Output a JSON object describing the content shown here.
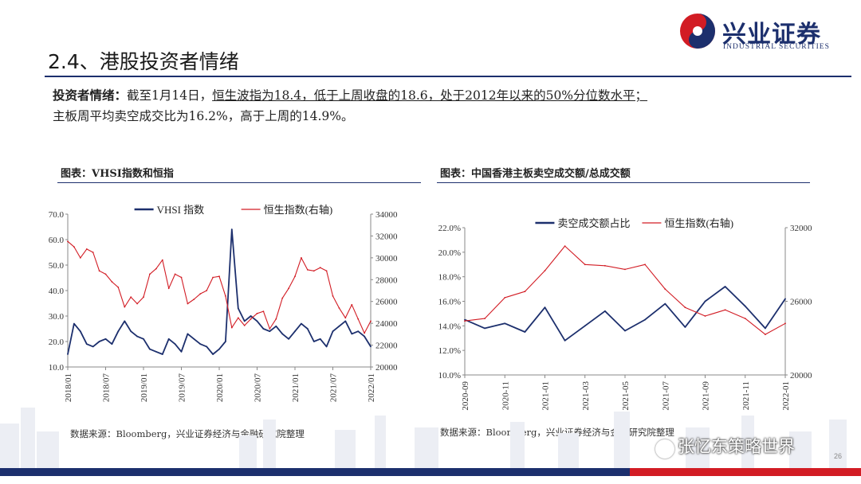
{
  "logo": {
    "name": "兴业证券",
    "subtitle": "INDUSTRIAL SECURITIES"
  },
  "section_title": "2.4、港股投资者情绪",
  "summary": {
    "label": "投资者情绪：",
    "part1": "截至1月14日，",
    "part2_underlined": "恒生波指为18.4，低于上周收盘的18.6，处于2012年以来的50%分位数水平；",
    "line2": "主板周平均卖空成交比为16.2%，高于上周的14.9%。"
  },
  "page_number": "26",
  "watermark": "张忆东策略世界",
  "colors": {
    "navy": "#1c2f6d",
    "red": "#d21c24"
  },
  "chart_data": [
    {
      "type": "line",
      "title": "图表：VHSI指数和恒指",
      "source": "数据来源：Bloomberg，兴业证券经济与金融研究院整理",
      "x_ticks": [
        "2018/01",
        "2018/07",
        "2019/01",
        "2019/07",
        "2020/01",
        "2020/07",
        "2021/01",
        "2021/07",
        "2022/01"
      ],
      "ylim_left": [
        10,
        70
      ],
      "y_ticks_left": [
        "10.0",
        "20.0",
        "30.0",
        "40.0",
        "50.0",
        "60.0",
        "70.0"
      ],
      "ylim_right": [
        20000,
        34000
      ],
      "y_ticks_right": [
        "20000",
        "22000",
        "24000",
        "26000",
        "28000",
        "30000",
        "32000",
        "34000"
      ],
      "legend": "top",
      "grid": false,
      "series": [
        {
          "name": "VHSI 指数",
          "axis": "left",
          "color": "#1c2f6d",
          "x": [
            "2018-01",
            "2018-02",
            "2018-03",
            "2018-04",
            "2018-05",
            "2018-06",
            "2018-07",
            "2018-08",
            "2018-09",
            "2018-10",
            "2018-11",
            "2018-12",
            "2019-01",
            "2019-02",
            "2019-03",
            "2019-04",
            "2019-05",
            "2019-06",
            "2019-07",
            "2019-08",
            "2019-09",
            "2019-10",
            "2019-11",
            "2019-12",
            "2020-01",
            "2020-02",
            "2020-03",
            "2020-04",
            "2020-05",
            "2020-06",
            "2020-07",
            "2020-08",
            "2020-09",
            "2020-10",
            "2020-11",
            "2020-12",
            "2021-01",
            "2021-02",
            "2021-03",
            "2021-04",
            "2021-05",
            "2021-06",
            "2021-07",
            "2021-08",
            "2021-09",
            "2021-10",
            "2021-11",
            "2021-12",
            "2022-01"
          ],
          "values": [
            15,
            27,
            24,
            19,
            18,
            20,
            21,
            19,
            24,
            28,
            24,
            22,
            21,
            17,
            16,
            15,
            21,
            19,
            16,
            23,
            21,
            19,
            18,
            15,
            17,
            20,
            64,
            33,
            28,
            30,
            28,
            25,
            24,
            26,
            23,
            21,
            24,
            27,
            25,
            20,
            21,
            18,
            24,
            26,
            28,
            23,
            24,
            22,
            18
          ]
        },
        {
          "name": "恒生指数(右轴)",
          "axis": "right",
          "color": "#d21c24",
          "x": [
            "2018-01",
            "2018-02",
            "2018-03",
            "2018-04",
            "2018-05",
            "2018-06",
            "2018-07",
            "2018-08",
            "2018-09",
            "2018-10",
            "2018-11",
            "2018-12",
            "2019-01",
            "2019-02",
            "2019-03",
            "2019-04",
            "2019-05",
            "2019-06",
            "2019-07",
            "2019-08",
            "2019-09",
            "2019-10",
            "2019-11",
            "2019-12",
            "2020-01",
            "2020-02",
            "2020-03",
            "2020-04",
            "2020-05",
            "2020-06",
            "2020-07",
            "2020-08",
            "2020-09",
            "2020-10",
            "2020-11",
            "2020-12",
            "2021-01",
            "2021-02",
            "2021-03",
            "2021-04",
            "2021-05",
            "2021-06",
            "2021-07",
            "2021-08",
            "2021-09",
            "2021-10",
            "2021-11",
            "2021-12",
            "2022-01"
          ],
          "values": [
            31500,
            31000,
            30000,
            30800,
            30500,
            28800,
            28500,
            27800,
            27300,
            25500,
            26400,
            25800,
            26400,
            28500,
            29000,
            29800,
            27200,
            28500,
            28200,
            25800,
            26200,
            26700,
            27000,
            28200,
            28300,
            26500,
            23600,
            24500,
            23800,
            24400,
            24900,
            25100,
            23500,
            24400,
            26300,
            27200,
            28300,
            30000,
            28900,
            28800,
            29100,
            28800,
            26500,
            25400,
            24500,
            25700,
            24400,
            23100,
            24200
          ]
        }
      ]
    },
    {
      "type": "line",
      "title": "图表：中国香港主板卖空成交额/总成交额",
      "source": "数据来源：Bloomberg，兴业证券经济与金融研究院整理",
      "x_ticks": [
        "2020-09",
        "2020-11",
        "2021-01",
        "2021-03",
        "2021-05",
        "2021-07",
        "2021-09",
        "2021-11",
        "2022-01"
      ],
      "ylim_left": [
        10,
        22
      ],
      "y_ticks_left": [
        "10.0%",
        "12.0%",
        "14.0%",
        "16.0%",
        "18.0%",
        "20.0%",
        "22.0%"
      ],
      "ylim_right": [
        20000,
        32000
      ],
      "y_ticks_right": [
        "20000",
        "26000",
        "32000"
      ],
      "legend": "top",
      "grid": false,
      "series": [
        {
          "name": "卖空成交额占比",
          "axis": "left",
          "color": "#1c2f6d",
          "x": [
            "2020-09",
            "2020-10",
            "2020-11",
            "2020-12",
            "2021-01",
            "2021-02",
            "2021-03",
            "2021-04",
            "2021-05",
            "2021-06",
            "2021-07",
            "2021-08",
            "2021-09",
            "2021-10",
            "2021-11",
            "2021-12",
            "2022-01"
          ],
          "values": [
            14.5,
            13.8,
            14.2,
            13.5,
            15.5,
            12.8,
            14.0,
            15.2,
            13.6,
            14.5,
            15.8,
            13.9,
            16.0,
            17.2,
            15.6,
            13.8,
            16.2
          ]
        },
        {
          "name": "恒生指数(右轴)",
          "axis": "right",
          "color": "#d21c24",
          "x": [
            "2020-09",
            "2020-10",
            "2020-11",
            "2020-12",
            "2021-01",
            "2021-02",
            "2021-03",
            "2021-04",
            "2021-05",
            "2021-06",
            "2021-07",
            "2021-08",
            "2021-09",
            "2021-10",
            "2021-11",
            "2021-12",
            "2022-01"
          ],
          "values": [
            24400,
            24600,
            26300,
            26800,
            28500,
            30500,
            29000,
            28900,
            28600,
            29000,
            27000,
            25500,
            24800,
            25300,
            24600,
            23300,
            24200
          ]
        }
      ]
    }
  ]
}
